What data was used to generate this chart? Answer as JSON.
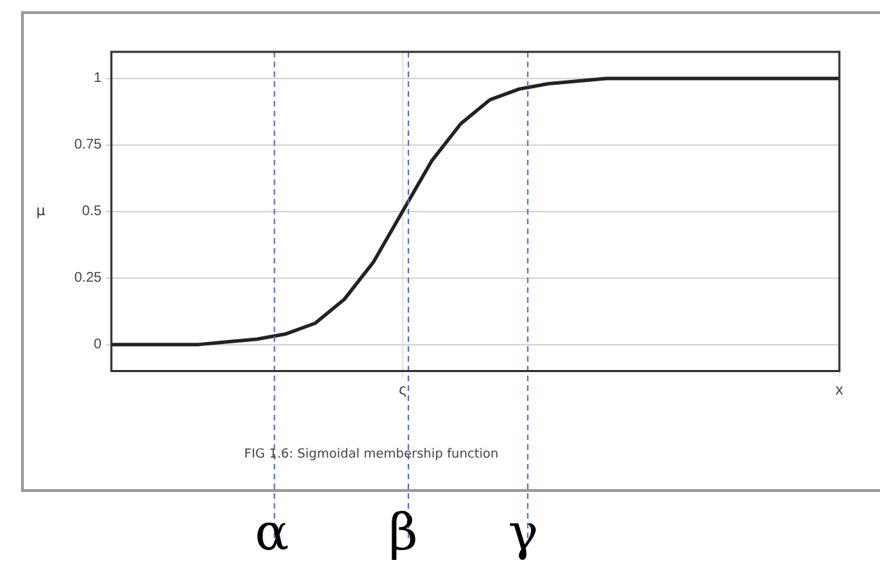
{
  "chart_data": {
    "type": "line",
    "ylabel": "μ",
    "annotations": [
      "FIG 1.6: Sigmoidal membership function",
      "α",
      "β",
      "γ"
    ],
    "categories": [
      null,
      null,
      null,
      null,
      null,
      null,
      null,
      null,
      null,
      null,
      "ς",
      null,
      null,
      null,
      null,
      null,
      null,
      null,
      null,
      null,
      null,
      null,
      null,
      null,
      null,
      "x"
    ],
    "series": [
      {
        "color": "#222222",
        "values": [
          0,
          0,
          0,
          0,
          0.01,
          0.02,
          0.04,
          0.08,
          0.17,
          0.31,
          0.5,
          0.69,
          0.83,
          0.92,
          0.96,
          0.98,
          0.99,
          1,
          1,
          1,
          1,
          1,
          1,
          1,
          1,
          1
        ]
      }
    ],
    "ylim": [
      -0.1,
      1.1
    ],
    "yticks": [
      0,
      0.25,
      0.5,
      0.75,
      1
    ],
    "grid": true,
    "legend": false,
    "marker": "none",
    "line_style": "solid"
  }
}
